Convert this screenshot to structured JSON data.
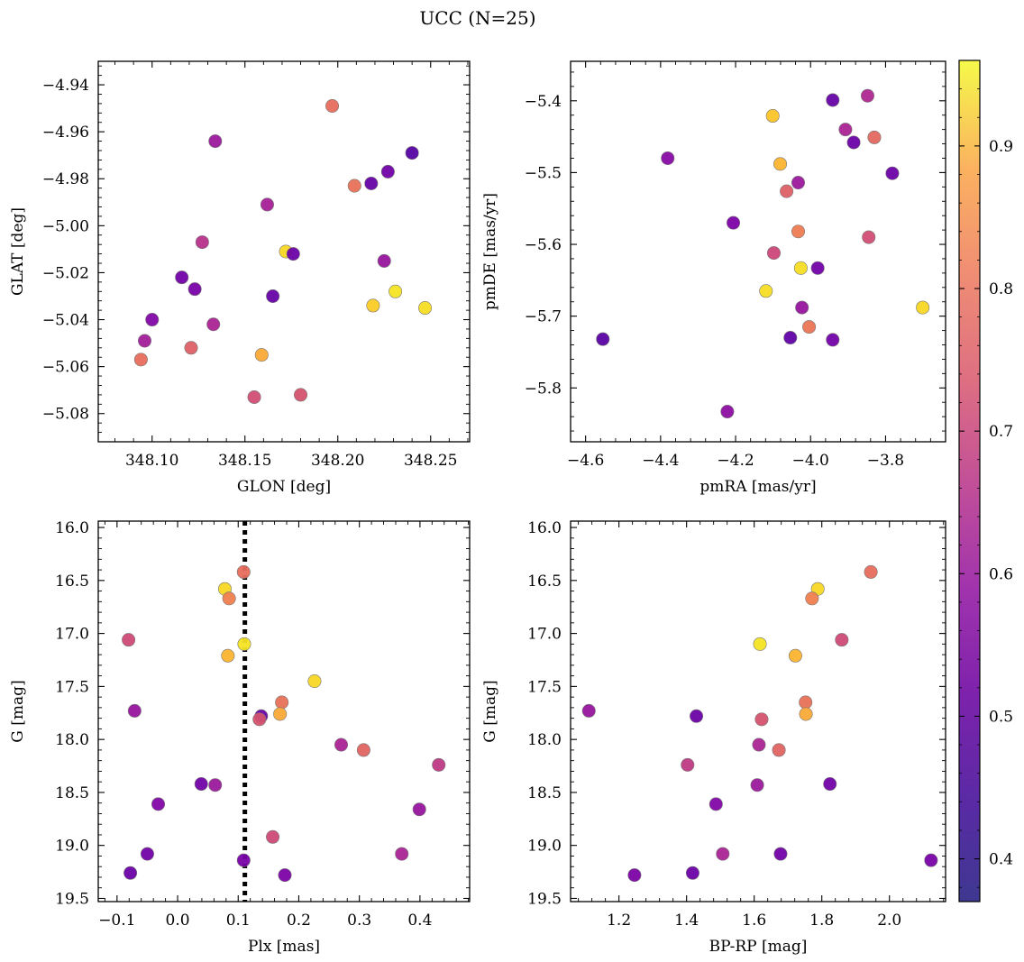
{
  "title": "UCC (N=25)",
  "colorbar": {
    "cmap": "plasma",
    "range": [
      0.37,
      0.96
    ],
    "ticks": [
      0.4,
      0.5,
      0.6,
      0.7,
      0.8,
      0.9
    ]
  },
  "chart_data": [
    {
      "type": "scatter",
      "xlabel": "GLON [deg]",
      "ylabel": "GLAT [deg]",
      "xlim": [
        348.071,
        348.271
      ],
      "ylim": [
        -5.092,
        -4.93
      ],
      "invert_y": false,
      "xticks": [
        348.1,
        348.15,
        348.2,
        348.25
      ],
      "xtick_labels": [
        "348.10",
        "348.15",
        "348.20",
        "348.25"
      ],
      "yticks": [
        -4.94,
        -4.96,
        -4.98,
        -5.0,
        -5.02,
        -5.04,
        -5.06,
        -5.08
      ],
      "ytick_labels": [
        "−4.94",
        "−4.96",
        "−4.98",
        "−5.00",
        "−5.02",
        "−5.04",
        "−5.06",
        "−5.08"
      ],
      "points": [
        {
          "x": 348.197,
          "y": -4.949,
          "c": 0.72
        },
        {
          "x": 348.24,
          "y": -4.969,
          "c": 0.39
        },
        {
          "x": 348.227,
          "y": -4.977,
          "c": 0.44
        },
        {
          "x": 348.218,
          "y": -4.982,
          "c": 0.42
        },
        {
          "x": 348.209,
          "y": -4.983,
          "c": 0.73
        },
        {
          "x": 348.134,
          "y": -4.964,
          "c": 0.52
        },
        {
          "x": 348.162,
          "y": -4.991,
          "c": 0.54
        },
        {
          "x": 348.127,
          "y": -5.007,
          "c": 0.58
        },
        {
          "x": 348.172,
          "y": -5.011,
          "c": 0.92
        },
        {
          "x": 348.176,
          "y": -5.012,
          "c": 0.43
        },
        {
          "x": 348.225,
          "y": -5.015,
          "c": 0.51
        },
        {
          "x": 348.116,
          "y": -5.022,
          "c": 0.44
        },
        {
          "x": 348.123,
          "y": -5.027,
          "c": 0.45
        },
        {
          "x": 348.231,
          "y": -5.028,
          "c": 0.94
        },
        {
          "x": 348.165,
          "y": -5.03,
          "c": 0.42
        },
        {
          "x": 348.219,
          "y": -5.034,
          "c": 0.9
        },
        {
          "x": 348.247,
          "y": -5.035,
          "c": 0.93
        },
        {
          "x": 348.1,
          "y": -5.04,
          "c": 0.47
        },
        {
          "x": 348.133,
          "y": -5.042,
          "c": 0.55
        },
        {
          "x": 348.096,
          "y": -5.049,
          "c": 0.53
        },
        {
          "x": 348.121,
          "y": -5.052,
          "c": 0.69
        },
        {
          "x": 348.159,
          "y": -5.055,
          "c": 0.84
        },
        {
          "x": 348.094,
          "y": -5.057,
          "c": 0.72
        },
        {
          "x": 348.155,
          "y": -5.073,
          "c": 0.65
        },
        {
          "x": 348.18,
          "y": -5.072,
          "c": 0.66
        }
      ]
    },
    {
      "type": "scatter",
      "xlabel": "pmRA [mas/yr]",
      "ylabel": "pmDE [mas/yr]",
      "xlim": [
        -4.64,
        -3.64
      ],
      "ylim": [
        -5.875,
        -5.345
      ],
      "invert_y": false,
      "xticks": [
        -4.6,
        -4.4,
        -4.2,
        -4.0,
        -3.8
      ],
      "xtick_labels": [
        "−4.6",
        "−4.4",
        "−4.2",
        "−4.0",
        "−3.8"
      ],
      "yticks": [
        -5.4,
        -5.5,
        -5.6,
        -5.7,
        -5.8
      ],
      "ytick_labels": [
        "−5.4",
        "−5.5",
        "−5.6",
        "−5.7",
        "−5.8"
      ],
      "points": [
        {
          "x": -3.941,
          "y": -5.399,
          "c": 0.42
        },
        {
          "x": -3.848,
          "y": -5.393,
          "c": 0.56
        },
        {
          "x": -4.101,
          "y": -5.421,
          "c": 0.89
        },
        {
          "x": -3.907,
          "y": -5.44,
          "c": 0.55
        },
        {
          "x": -3.885,
          "y": -5.458,
          "c": 0.43
        },
        {
          "x": -3.83,
          "y": -5.451,
          "c": 0.71
        },
        {
          "x": -4.381,
          "y": -5.48,
          "c": 0.48
        },
        {
          "x": -4.081,
          "y": -5.488,
          "c": 0.86
        },
        {
          "x": -3.782,
          "y": -5.501,
          "c": 0.43
        },
        {
          "x": -4.033,
          "y": -5.514,
          "c": 0.52
        },
        {
          "x": -4.064,
          "y": -5.526,
          "c": 0.69
        },
        {
          "x": -4.206,
          "y": -5.57,
          "c": 0.46
        },
        {
          "x": -4.033,
          "y": -5.582,
          "c": 0.75
        },
        {
          "x": -3.845,
          "y": -5.59,
          "c": 0.65
        },
        {
          "x": -4.098,
          "y": -5.612,
          "c": 0.63
        },
        {
          "x": -4.026,
          "y": -5.633,
          "c": 0.93
        },
        {
          "x": -3.981,
          "y": -5.633,
          "c": 0.44
        },
        {
          "x": -4.119,
          "y": -5.665,
          "c": 0.93
        },
        {
          "x": -4.023,
          "y": -5.688,
          "c": 0.51
        },
        {
          "x": -3.701,
          "y": -5.688,
          "c": 0.92
        },
        {
          "x": -4.004,
          "y": -5.715,
          "c": 0.74
        },
        {
          "x": -4.554,
          "y": -5.732,
          "c": 0.4
        },
        {
          "x": -4.054,
          "y": -5.73,
          "c": 0.41
        },
        {
          "x": -3.941,
          "y": -5.733,
          "c": 0.44
        },
        {
          "x": -4.222,
          "y": -5.833,
          "c": 0.49
        }
      ]
    },
    {
      "type": "scatter",
      "xlabel": "Plx [mas]",
      "ylabel": "G [mag]",
      "xlim": [
        -0.131,
        0.482
      ],
      "ylim": [
        19.53,
        15.94
      ],
      "invert_y": true,
      "xticks": [
        -0.1,
        0.0,
        0.1,
        0.2,
        0.3,
        0.4
      ],
      "xtick_labels": [
        "−0.1",
        "0.0",
        "0.1",
        "0.2",
        "0.3",
        "0.4"
      ],
      "yticks": [
        16.0,
        16.5,
        17.0,
        17.5,
        18.0,
        18.5,
        19.0,
        19.5
      ],
      "ytick_labels": [
        "16.0",
        "16.5",
        "17.0",
        "17.5",
        "18.0",
        "18.5",
        "19.0",
        "19.5"
      ],
      "vline": 0.111,
      "points": [
        {
          "x": 0.109,
          "y": 16.42,
          "c": 0.72
        },
        {
          "x": 0.078,
          "y": 16.58,
          "c": 0.92
        },
        {
          "x": 0.085,
          "y": 16.67,
          "c": 0.76
        },
        {
          "x": -0.081,
          "y": 17.06,
          "c": 0.64
        },
        {
          "x": 0.11,
          "y": 17.1,
          "c": 0.94
        },
        {
          "x": 0.083,
          "y": 17.21,
          "c": 0.86
        },
        {
          "x": 0.226,
          "y": 17.45,
          "c": 0.92
        },
        {
          "x": -0.071,
          "y": 17.73,
          "c": 0.51
        },
        {
          "x": 0.172,
          "y": 17.65,
          "c": 0.73
        },
        {
          "x": 0.169,
          "y": 17.76,
          "c": 0.84
        },
        {
          "x": 0.138,
          "y": 17.78,
          "c": 0.43
        },
        {
          "x": 0.135,
          "y": 17.81,
          "c": 0.66
        },
        {
          "x": 0.27,
          "y": 18.05,
          "c": 0.55
        },
        {
          "x": 0.307,
          "y": 18.1,
          "c": 0.7
        },
        {
          "x": 0.431,
          "y": 18.24,
          "c": 0.6
        },
        {
          "x": 0.039,
          "y": 18.42,
          "c": 0.44
        },
        {
          "x": 0.062,
          "y": 18.43,
          "c": 0.52
        },
        {
          "x": -0.032,
          "y": 18.61,
          "c": 0.47
        },
        {
          "x": 0.399,
          "y": 18.66,
          "c": 0.51
        },
        {
          "x": 0.157,
          "y": 18.92,
          "c": 0.64
        },
        {
          "x": -0.05,
          "y": 19.08,
          "c": 0.44
        },
        {
          "x": 0.37,
          "y": 19.08,
          "c": 0.55
        },
        {
          "x": 0.109,
          "y": 19.14,
          "c": 0.45
        },
        {
          "x": -0.078,
          "y": 19.26,
          "c": 0.43
        },
        {
          "x": 0.177,
          "y": 19.28,
          "c": 0.46
        }
      ]
    },
    {
      "type": "scatter",
      "xlabel": "BP-RP [mag]",
      "ylabel": "G [mag]",
      "xlim": [
        1.057,
        2.166
      ],
      "ylim": [
        19.53,
        15.94
      ],
      "invert_y": true,
      "xticks": [
        1.2,
        1.4,
        1.6,
        1.8,
        2.0
      ],
      "xtick_labels": [
        "1.2",
        "1.4",
        "1.6",
        "1.8",
        "2.0"
      ],
      "yticks": [
        16.0,
        16.5,
        17.0,
        17.5,
        18.0,
        18.5,
        19.0,
        19.5
      ],
      "ytick_labels": [
        "16.0",
        "16.5",
        "17.0",
        "17.5",
        "18.0",
        "18.5",
        "19.0",
        "19.5"
      ],
      "points": [
        {
          "x": 1.945,
          "y": 16.42,
          "c": 0.72
        },
        {
          "x": 1.788,
          "y": 16.58,
          "c": 0.92
        },
        {
          "x": 1.771,
          "y": 16.67,
          "c": 0.76
        },
        {
          "x": 1.859,
          "y": 17.06,
          "c": 0.64
        },
        {
          "x": 1.617,
          "y": 17.1,
          "c": 0.94
        },
        {
          "x": 1.722,
          "y": 17.21,
          "c": 0.86
        },
        {
          "x": 1.111,
          "y": 17.73,
          "c": 0.51
        },
        {
          "x": 1.752,
          "y": 17.65,
          "c": 0.73
        },
        {
          "x": 1.753,
          "y": 17.76,
          "c": 0.84
        },
        {
          "x": 1.429,
          "y": 17.78,
          "c": 0.43
        },
        {
          "x": 1.622,
          "y": 17.81,
          "c": 0.66
        },
        {
          "x": 1.614,
          "y": 18.05,
          "c": 0.55
        },
        {
          "x": 1.673,
          "y": 18.1,
          "c": 0.7
        },
        {
          "x": 1.403,
          "y": 18.24,
          "c": 0.6
        },
        {
          "x": 1.824,
          "y": 18.42,
          "c": 0.44
        },
        {
          "x": 1.609,
          "y": 18.43,
          "c": 0.52
        },
        {
          "x": 1.487,
          "y": 18.61,
          "c": 0.47
        },
        {
          "x": 1.507,
          "y": 19.08,
          "c": 0.55
        },
        {
          "x": 1.678,
          "y": 19.08,
          "c": 0.44
        },
        {
          "x": 2.123,
          "y": 19.14,
          "c": 0.45
        },
        {
          "x": 1.418,
          "y": 19.26,
          "c": 0.43
        },
        {
          "x": 1.246,
          "y": 19.28,
          "c": 0.46
        }
      ]
    }
  ]
}
